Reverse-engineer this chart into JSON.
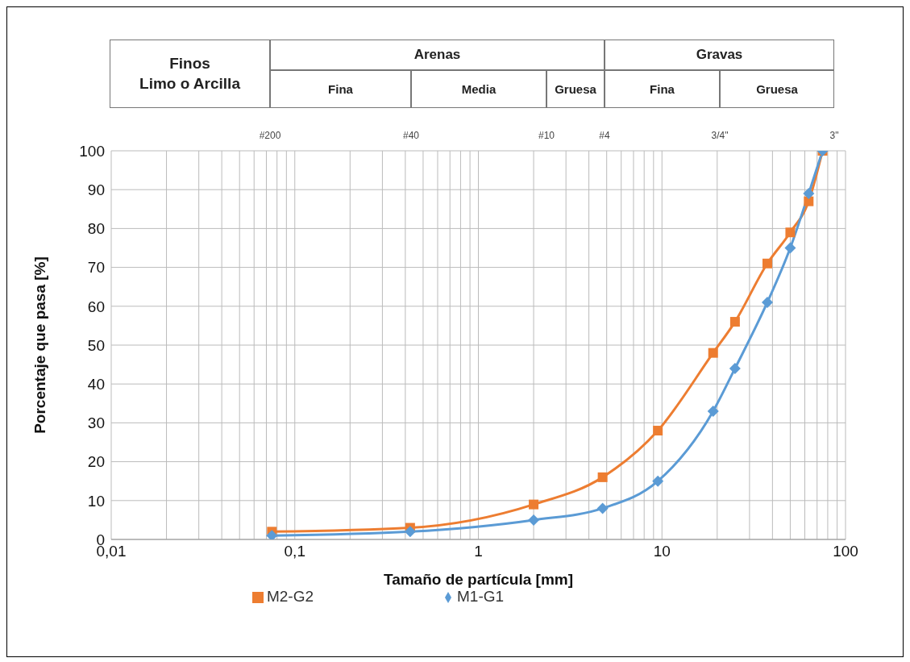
{
  "chart_data": {
    "type": "line",
    "xlabel": "Tamaño de partícula [mm]",
    "ylabel": "Porcentaje que pasa [%]",
    "log": "x",
    "xlim": [
      0.01,
      100
    ],
    "xticks": [
      {
        "value": 0.01,
        "label": "0,01"
      },
      {
        "value": 0.1,
        "label": "0,1"
      },
      {
        "value": 1,
        "label": "1"
      },
      {
        "value": 10,
        "label": "10"
      },
      {
        "value": 100,
        "label": "100"
      }
    ],
    "ylim": [
      0,
      100
    ],
    "yticks": [
      0,
      10,
      20,
      30,
      40,
      50,
      60,
      70,
      80,
      90,
      100
    ],
    "grid": true,
    "legend": "bottom",
    "annotations": [
      "Finos",
      "Limo o Arcilla",
      "Arenas",
      "Fina",
      "Media",
      "Gruesa",
      "Gravas",
      "Fina",
      "Gruesa",
      "#200",
      "#40",
      "#10",
      "#4",
      "3/4\"",
      "3\""
    ],
    "x": [
      0.075,
      0.425,
      2,
      4.75,
      9.5,
      19,
      25,
      37.5,
      50,
      63,
      75
    ],
    "series": [
      {
        "name": "M2-G2",
        "color": "#ed7d31",
        "marker": "square",
        "values": [
          2,
          3,
          9,
          16,
          28,
          48,
          56,
          71,
          79,
          87,
          100
        ]
      },
      {
        "name": "M1-G1",
        "color": "#5b9bd5",
        "marker": "diamond",
        "values": [
          1,
          2,
          5,
          8,
          15,
          33,
          44,
          61,
          75,
          89,
          100
        ]
      }
    ]
  }
}
